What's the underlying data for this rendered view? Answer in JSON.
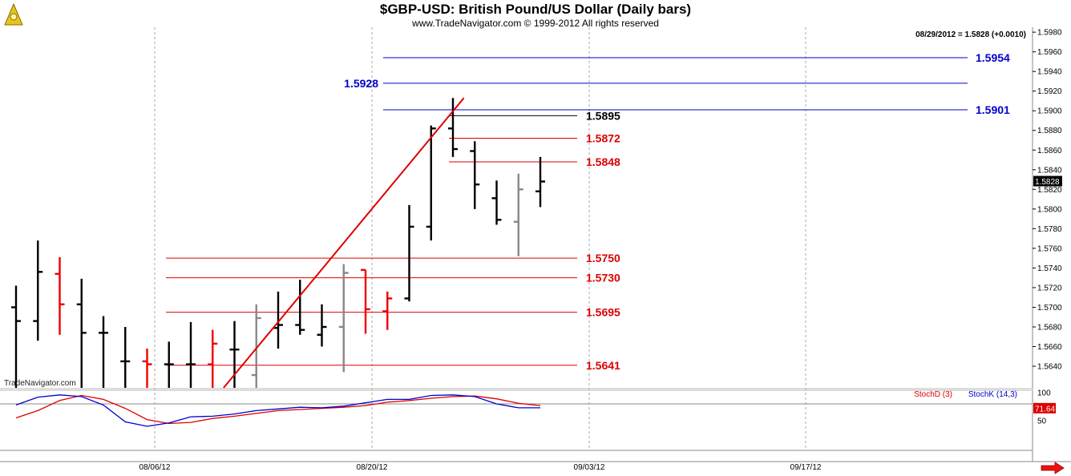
{
  "header": {
    "title": "$GBP-USD:  British Pound/US Dollar  (Daily bars)",
    "subtitle": "www.TradeNavigator.com © 1999-2012 All rights reserved",
    "last_quote": "08/29/2012 = 1.5828 (+0.0010)",
    "watermark": "TradeNavigator.com"
  },
  "colors": {
    "up": "#000000",
    "down": "#ee0000",
    "neutral": "#888888",
    "blue": "#0000cc",
    "red": "#dd0000"
  },
  "chart_data": {
    "type": "bar",
    "y_ticks": [
      "1.5640",
      "1.5660",
      "1.5680",
      "1.5700",
      "1.5720",
      "1.5740",
      "1.5760",
      "1.5780",
      "1.5800",
      "1.5820",
      "1.5840",
      "1.5860",
      "1.5880",
      "1.5900",
      "1.5920",
      "1.5940",
      "1.5960",
      "1.5980"
    ],
    "ylim": [
      1.5618,
      1.5985
    ],
    "x_labels": [
      "08/06/12",
      "08/20/12",
      "09/03/12",
      "09/17/12"
    ],
    "last_price_label": "1.5828",
    "bars": [
      {
        "o": 1.57,
        "h": 1.5722,
        "l": 1.5618,
        "c": 1.5686,
        "col": "up"
      },
      {
        "o": 1.5686,
        "h": 1.5768,
        "l": 1.5666,
        "c": 1.5736,
        "col": "up"
      },
      {
        "o": 1.5734,
        "h": 1.5751,
        "l": 1.5672,
        "c": 1.5703,
        "col": "down"
      },
      {
        "o": 1.5703,
        "h": 1.5729,
        "l": 1.5618,
        "c": 1.5674,
        "col": "up"
      },
      {
        "o": 1.5674,
        "h": 1.5691,
        "l": 1.5618,
        "c": 1.5674,
        "col": "up"
      },
      {
        "o": 1.5645,
        "h": 1.568,
        "l": 1.5618,
        "c": 1.5645,
        "col": "up"
      },
      {
        "o": 1.5645,
        "h": 1.5658,
        "l": 1.5618,
        "c": 1.5642,
        "col": "down"
      },
      {
        "o": 1.5642,
        "h": 1.5665,
        "l": 1.5618,
        "c": 1.5642,
        "col": "up"
      },
      {
        "o": 1.5642,
        "h": 1.5685,
        "l": 1.5618,
        "c": 1.5642,
        "col": "up"
      },
      {
        "o": 1.5642,
        "h": 1.5677,
        "l": 1.5618,
        "c": 1.5663,
        "col": "down"
      },
      {
        "o": 1.5657,
        "h": 1.5686,
        "l": 1.5618,
        "c": 1.5657,
        "col": "up"
      },
      {
        "o": 1.5631,
        "h": 1.5703,
        "l": 1.5618,
        "c": 1.5689,
        "col": "neutral"
      },
      {
        "o": 1.5679,
        "h": 1.5716,
        "l": 1.5658,
        "c": 1.5682,
        "col": "up"
      },
      {
        "o": 1.5682,
        "h": 1.5728,
        "l": 1.5672,
        "c": 1.5677,
        "col": "up"
      },
      {
        "o": 1.5672,
        "h": 1.5703,
        "l": 1.566,
        "c": 1.568,
        "col": "up"
      },
      {
        "o": 1.568,
        "h": 1.5744,
        "l": 1.5634,
        "c": 1.5735,
        "col": "neutral"
      },
      {
        "o": 1.5738,
        "h": 1.5738,
        "l": 1.5673,
        "c": 1.5698,
        "col": "down"
      },
      {
        "o": 1.5696,
        "h": 1.5716,
        "l": 1.5677,
        "c": 1.5709,
        "col": "down"
      },
      {
        "o": 1.5709,
        "h": 1.5804,
        "l": 1.5706,
        "c": 1.5782,
        "col": "up"
      },
      {
        "o": 1.5782,
        "h": 1.5885,
        "l": 1.5768,
        "c": 1.5882,
        "col": "up"
      },
      {
        "o": 1.5882,
        "h": 1.5913,
        "l": 1.5853,
        "c": 1.5861,
        "col": "up"
      },
      {
        "o": 1.5859,
        "h": 1.5869,
        "l": 1.58,
        "c": 1.5825,
        "col": "up"
      },
      {
        "o": 1.5811,
        "h": 1.5829,
        "l": 1.5784,
        "c": 1.5789,
        "col": "up"
      },
      {
        "o": 1.5787,
        "h": 1.5836,
        "l": 1.5752,
        "c": 1.582,
        "col": "neutral"
      },
      {
        "o": 1.5818,
        "h": 1.5853,
        "l": 1.5802,
        "c": 1.5828,
        "col": "up"
      }
    ],
    "levels": [
      {
        "value": 1.5954,
        "label": "1.5954",
        "color": "blue",
        "side": "right"
      },
      {
        "value": 1.5928,
        "label": "1.5928",
        "color": "blue",
        "side": "left"
      },
      {
        "value": 1.5901,
        "label": "1.5901",
        "color": "blue",
        "side": "right"
      },
      {
        "value": 1.5895,
        "label": "1.5895",
        "color": "black",
        "side": "mid"
      },
      {
        "value": 1.5872,
        "label": "1.5872",
        "color": "red",
        "side": "mid"
      },
      {
        "value": 1.5848,
        "label": "1.5848",
        "color": "red",
        "side": "mid"
      },
      {
        "value": 1.575,
        "label": "1.5750",
        "color": "red",
        "side": "mid"
      },
      {
        "value": 1.573,
        "label": "1.5730",
        "color": "red",
        "side": "mid"
      },
      {
        "value": 1.5695,
        "label": "1.5695",
        "color": "red",
        "side": "mid"
      },
      {
        "value": 1.5641,
        "label": "1.5641",
        "color": "red",
        "side": "mid"
      }
    ],
    "trendline": {
      "from": [
        9.5,
        1.5618
      ],
      "to": [
        20.5,
        1.5913
      ]
    },
    "stochastic": {
      "label_d": "StochD (3)",
      "label_k": "StochK (14,3)",
      "ticks": [
        "100",
        "50"
      ],
      "current_label": "71.64",
      "k_values": [
        78,
        92,
        96,
        93,
        78,
        48,
        40,
        46,
        57,
        58,
        62,
        68,
        71,
        74,
        73,
        76,
        82,
        88,
        88,
        95,
        96,
        93,
        80,
        73,
        73
      ],
      "d_values": [
        55,
        68,
        86,
        95,
        88,
        72,
        52,
        45,
        47,
        54,
        58,
        63,
        68,
        70,
        72,
        74,
        77,
        83,
        86,
        90,
        93,
        94,
        89,
        81,
        77
      ]
    }
  }
}
